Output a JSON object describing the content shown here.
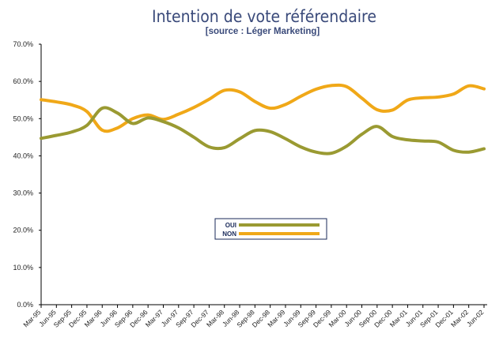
{
  "chart_data": {
    "type": "line",
    "title": "Intention de vote référendaire",
    "subtitle": "[source : Léger Marketing]",
    "xlabel": "",
    "ylabel": "",
    "ylim": [
      0,
      70
    ],
    "yticks": [
      "0.0%",
      "10.0%",
      "20.0%",
      "30.0%",
      "40.0%",
      "50.0%",
      "60.0%",
      "70.0%"
    ],
    "grid": false,
    "legend_position": "center",
    "categories": [
      "Mar-95",
      "Jun-95",
      "Sep-95",
      "Dec-95",
      "Mar-96",
      "Jun-96",
      "Sep-96",
      "Dec-96",
      "Mar-97",
      "Jun-97",
      "Sep-97",
      "Dec-97",
      "Mar-98",
      "Jun-98",
      "Sep-98",
      "Dec-98",
      "Mar-99",
      "Jun-99",
      "Sep-99",
      "Dec-99",
      "Mar-00",
      "Jun-00",
      "Sep-00",
      "Dec-00",
      "Mar-01",
      "Jun-01",
      "Sep-01",
      "Dec-01",
      "Mar-02",
      "Jun-02"
    ],
    "series": [
      {
        "name": "OUI",
        "color": "#9a9a32",
        "values": [
          44.7,
          45.5,
          46.4,
          48.2,
          52.8,
          51.5,
          48.7,
          50.2,
          49.2,
          47.5,
          45.0,
          42.4,
          42.2,
          44.6,
          46.8,
          46.5,
          44.6,
          42.4,
          41.0,
          40.7,
          42.6,
          45.8,
          47.9,
          45.2,
          44.3,
          44.0,
          43.7,
          41.5,
          41.0,
          41.9
        ]
      },
      {
        "name": "NON",
        "color": "#f0a818",
        "values": [
          55.1,
          54.5,
          53.7,
          51.9,
          46.9,
          47.5,
          50.0,
          51.0,
          49.8,
          51.2,
          53.0,
          55.2,
          57.6,
          57.2,
          54.6,
          52.8,
          53.8,
          56.0,
          57.9,
          58.9,
          58.6,
          55.5,
          52.4,
          52.3,
          55.0,
          55.6,
          55.8,
          56.6,
          58.8,
          58.0
        ]
      }
    ]
  }
}
